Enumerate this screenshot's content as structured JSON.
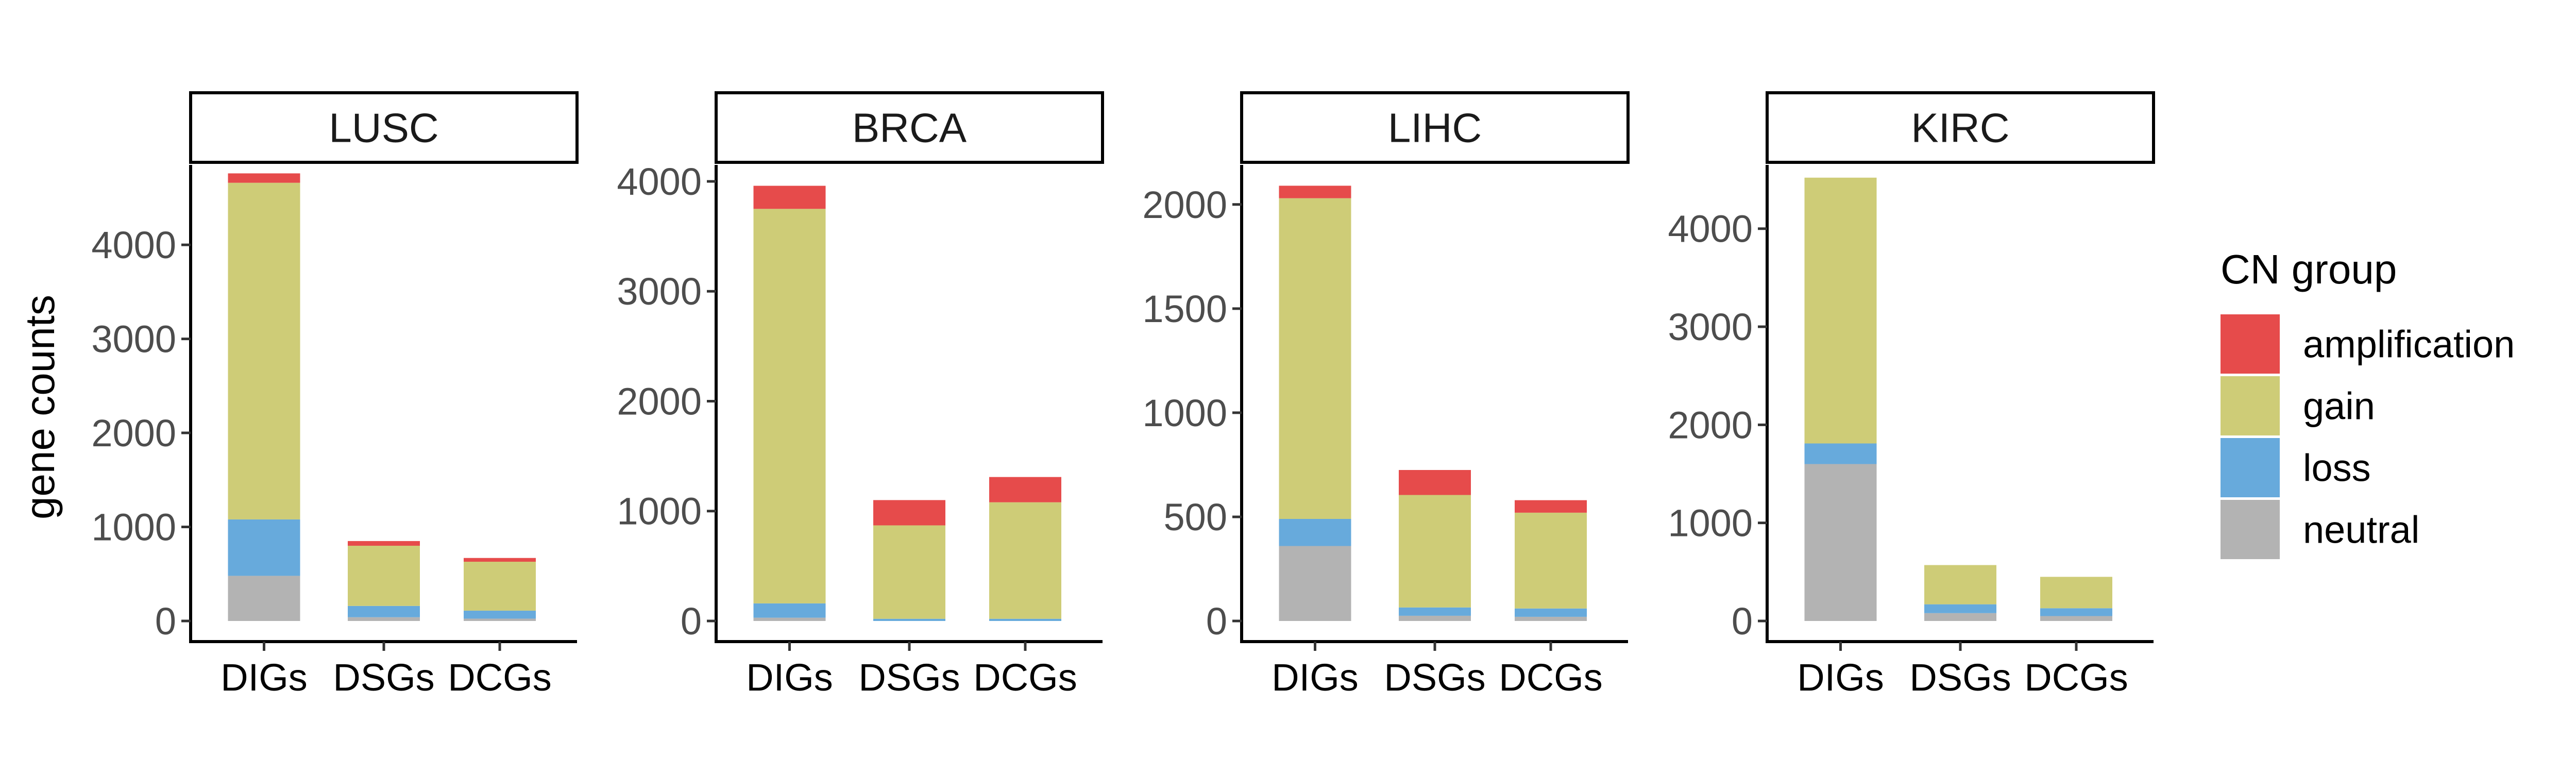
{
  "chart_data": {
    "type": "bar",
    "stacked": true,
    "categories": [
      "DIGs",
      "DSGs",
      "DCGs"
    ],
    "ylabel": "gene counts",
    "grid": false,
    "legend": {
      "title": "CN group",
      "position": "right",
      "entries": [
        "amplification",
        "gain",
        "loss",
        "neutral"
      ]
    },
    "colors": {
      "amplification": "#E64B4B",
      "gain": "#CECC77",
      "loss": "#67AADC",
      "neutral": "#B3B3B3"
    },
    "panels": [
      {
        "title": "LUSC",
        "ylim": [
          0,
          4850
        ],
        "yticks": [
          0,
          1000,
          2000,
          3000,
          4000
        ],
        "series": [
          {
            "name": "neutral",
            "values": [
              480,
              40,
              25
            ]
          },
          {
            "name": "loss",
            "values": [
              600,
              120,
              85
            ]
          },
          {
            "name": "gain",
            "values": [
              3580,
              640,
              520
            ]
          },
          {
            "name": "amplification",
            "values": [
              100,
              50,
              40
            ]
          }
        ]
      },
      {
        "title": "BRCA",
        "ylim": [
          0,
          4150
        ],
        "yticks": [
          0,
          1000,
          2000,
          3000,
          4000
        ],
        "series": [
          {
            "name": "neutral",
            "values": [
              30,
              0,
              0
            ]
          },
          {
            "name": "loss",
            "values": [
              130,
              20,
              20
            ]
          },
          {
            "name": "gain",
            "values": [
              3590,
              850,
              1060
            ]
          },
          {
            "name": "amplification",
            "values": [
              210,
              230,
              230
            ]
          }
        ]
      },
      {
        "title": "LIHC",
        "ylim": [
          0,
          2190
        ],
        "yticks": [
          0,
          500,
          1000,
          1500,
          2000
        ],
        "series": [
          {
            "name": "neutral",
            "values": [
              360,
              25,
              20
            ]
          },
          {
            "name": "loss",
            "values": [
              130,
              40,
              40
            ]
          },
          {
            "name": "gain",
            "values": [
              1540,
              540,
              460
            ]
          },
          {
            "name": "amplification",
            "values": [
              60,
              120,
              60
            ]
          }
        ]
      },
      {
        "title": "KIRC",
        "ylim": [
          0,
          4650
        ],
        "yticks": [
          0,
          1000,
          2000,
          3000,
          4000
        ],
        "series": [
          {
            "name": "neutral",
            "values": [
              1600,
              80,
              50
            ]
          },
          {
            "name": "loss",
            "values": [
              210,
              90,
              80
            ]
          },
          {
            "name": "gain",
            "values": [
              2710,
              400,
              320
            ]
          },
          {
            "name": "amplification",
            "values": [
              0,
              0,
              0
            ]
          }
        ]
      }
    ]
  }
}
